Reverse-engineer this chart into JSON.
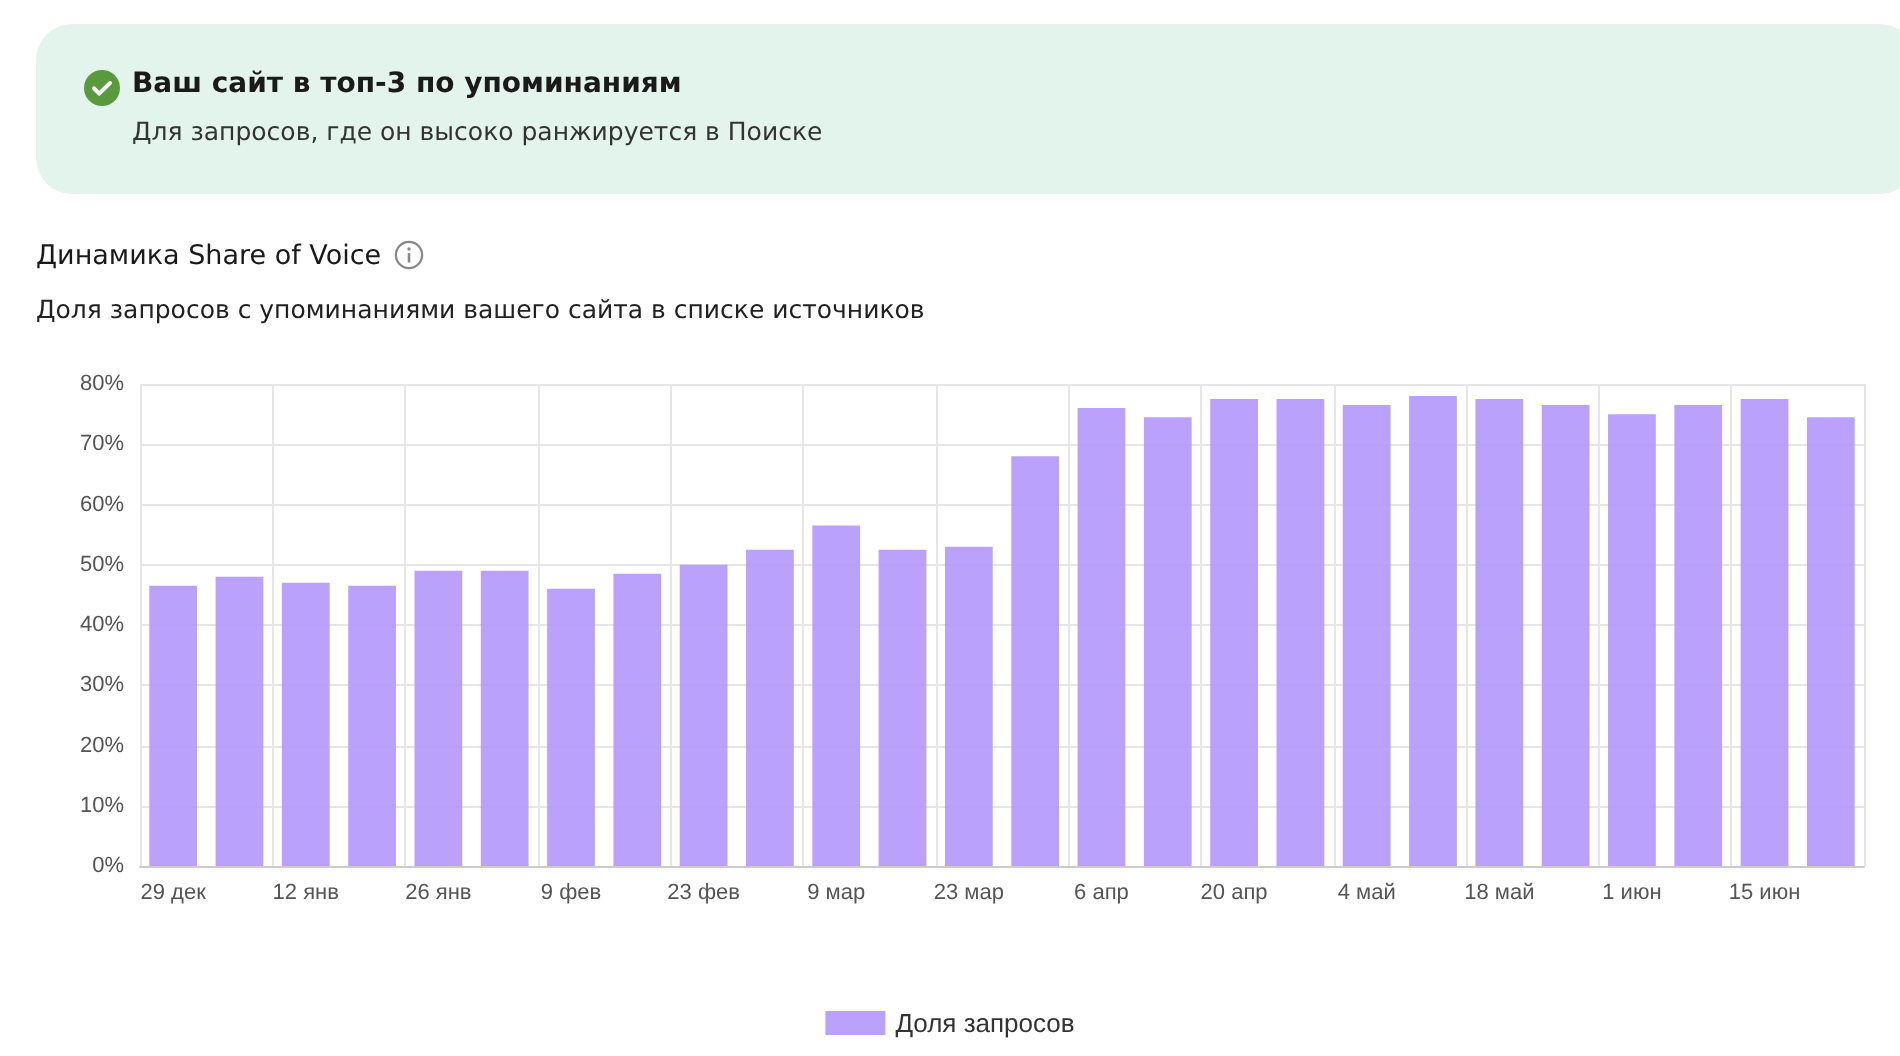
{
  "chart_data": {
    "type": "bar",
    "title": "Динамика Share of Voice",
    "subtitle": "Доля запросов с упоминаниями вашего сайта в списке источников",
    "annotations": [
      "Ваш сайт в топ-3 по упоминаниям",
      "Для запросов, где он высоко ранжируется в Поиске"
    ],
    "categories": [
      "29 дек",
      null,
      "12 янв",
      null,
      "26 янв",
      null,
      "9 фев",
      null,
      "23 фев",
      null,
      "9 мар",
      null,
      "23 мар",
      null,
      "6 апр",
      null,
      "20 апр",
      null,
      "4 май",
      null,
      "18 май",
      null,
      "1 июн",
      null,
      "15 июн",
      null
    ],
    "series": [
      {
        "name": "Доля запросов",
        "color": "#b197fc",
        "values": [
          46.5,
          48,
          47,
          46.5,
          49,
          49,
          46,
          48.5,
          50,
          52.5,
          56.5,
          52.5,
          53,
          68,
          76,
          74.5,
          77.5,
          77.5,
          76.5,
          78,
          77.5,
          76.5,
          75,
          76.5,
          77.5,
          74.5
        ]
      }
    ],
    "ylim": [
      0,
      80
    ],
    "yticks": [
      {
        "value": 0,
        "label": "0%"
      },
      {
        "value": 10,
        "label": "10%"
      },
      {
        "value": 20,
        "label": "20%"
      },
      {
        "value": 30,
        "label": "30%"
      },
      {
        "value": 40,
        "label": "40%"
      },
      {
        "value": 50,
        "label": "50%"
      },
      {
        "value": 60,
        "label": "60%"
      },
      {
        "value": 70,
        "label": "70%"
      },
      {
        "value": 80,
        "label": "80%"
      }
    ],
    "grid": true,
    "legend": "bottom"
  }
}
